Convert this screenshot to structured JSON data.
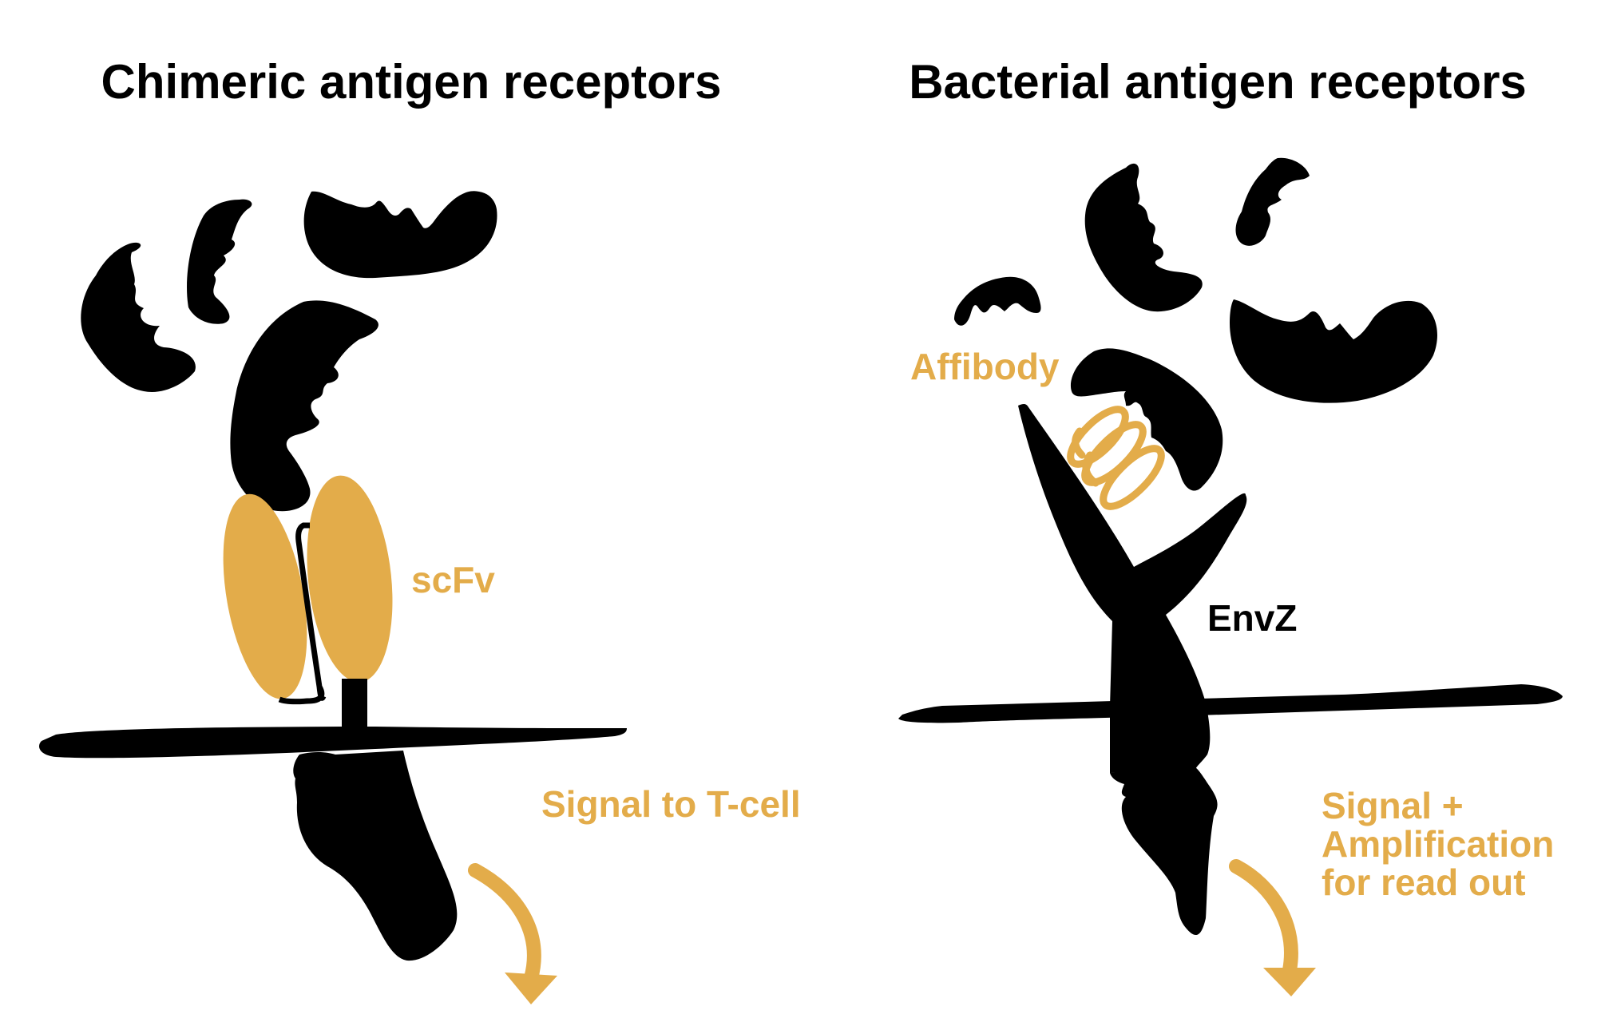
{
  "colors": {
    "ink": "#000000",
    "accent": "#E3AC4A",
    "background": "#FFFFFF"
  },
  "left_panel": {
    "title": "Chimeric antigen receptors",
    "domain_label": "scFv",
    "signal_label": "Signal to T-cell"
  },
  "right_panel": {
    "title": "Bacterial antigen receptors",
    "binder_label": "Affibody",
    "receptor_label": "EnvZ",
    "signal_label_lines": [
      "Signal +",
      "Amplification",
      "for read out"
    ]
  }
}
